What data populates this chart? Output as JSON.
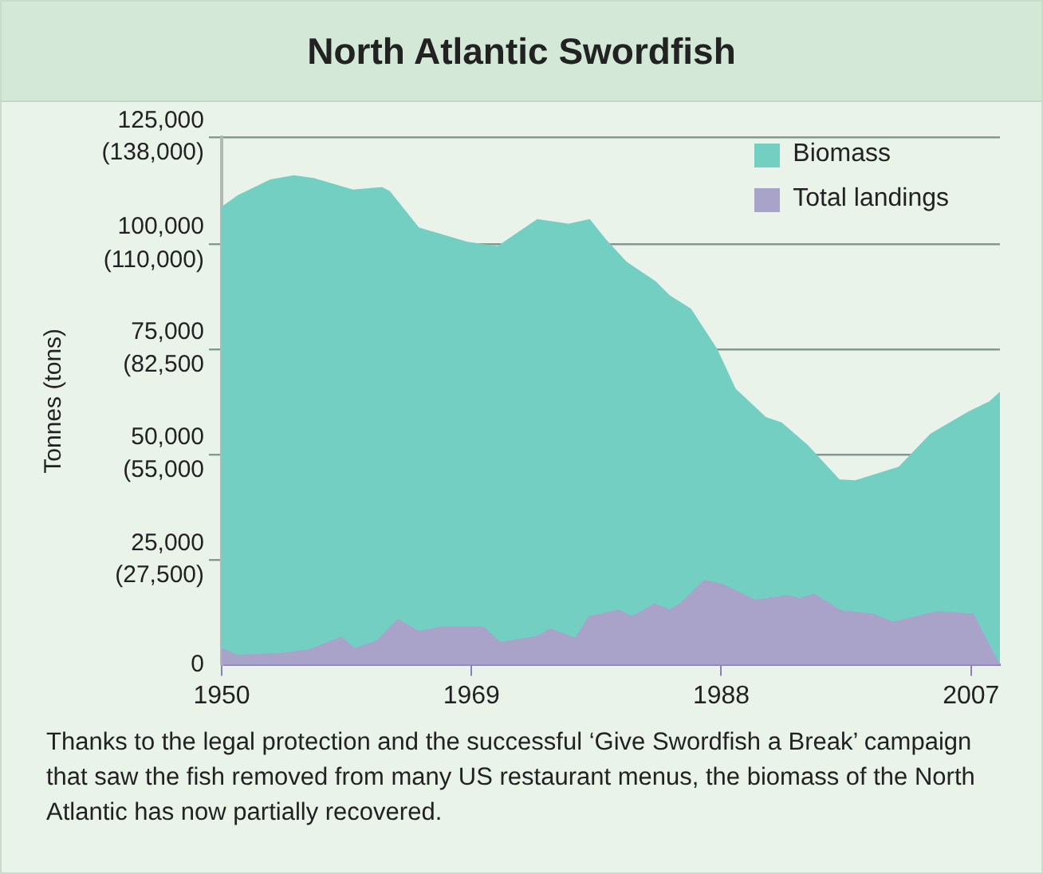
{
  "chart_data": {
    "type": "area",
    "title": "North Atlantic Swordfish",
    "ylabel": "Tonnes (tons)",
    "xlim": [
      1950,
      2009.2
    ],
    "xticks": [
      1950,
      1969,
      1988,
      2007
    ],
    "y2lim": [
      0,
      125000
    ],
    "y2ticks": [
      0,
      {
        "value": 25000,
        "label": "25,000"
      },
      {
        "value": 50000,
        "label": "50,000"
      },
      {
        "value": 75000,
        "label": "75,000"
      },
      {
        "value": 100000,
        "label": "100,000"
      },
      {
        "value": 125000,
        "label": "125,000"
      }
    ],
    "ylim": [
      0,
      138000
    ],
    "yticks": [
      {
        "value": 27500,
        "label": "(27,500)"
      },
      {
        "value": 55000,
        "label": "(55,000"
      },
      {
        "value": 82500,
        "label": "(82,500"
      },
      {
        "value": 110000,
        "label": "(110,000)"
      },
      {
        "value": 138000,
        "label": "(138,000)"
      }
    ],
    "grid": "y",
    "legend": "top right",
    "series": [
      {
        "name": "Biomass",
        "color": "#74cfc3",
        "axis": "y2",
        "x": [
          1950,
          1951.2,
          1953.7,
          1955.5,
          1957,
          1960,
          1962.2,
          1962.8,
          1965,
          1968.7,
          1971,
          1974,
          1976.4,
          1978,
          1979.2,
          1980.8,
          1983,
          1984.1,
          1985.7,
          1987.7,
          1989.1,
          1991.4,
          1992.6,
          1994.6,
          1997,
          1998.2,
          2001.5,
          2003.9,
          2006.8,
          2008.4,
          2009.2
        ],
        "values": [
          108500,
          111200,
          115000,
          116000,
          115300,
          112600,
          113200,
          112200,
          103600,
          100200,
          99200,
          105600,
          104500,
          105600,
          100900,
          95500,
          90900,
          87500,
          84400,
          74800,
          65400,
          58700,
          57400,
          52000,
          43900,
          43700,
          46900,
          54700,
          60000,
          62400,
          64700
        ]
      },
      {
        "name": "Total landings",
        "color": "#a9a3c9",
        "axis": "y2",
        "x": [
          1950,
          1951.2,
          1954.5,
          1956.7,
          1959.1,
          1960.1,
          1961.8,
          1963.4,
          1965,
          1966.7,
          1969.9,
          1971.2,
          1974,
          1975,
          1976.9,
          1977.9,
          1980.2,
          1981.2,
          1982.9,
          1984.1,
          1984.9,
          1986.7,
          1988.1,
          1990.6,
          1993,
          1994,
          1995.1,
          1997.1,
          1999.5,
          2001.1,
          2004.4,
          2007.2,
          2007.6,
          2009.2
        ],
        "values": [
          4000,
          2400,
          2800,
          3700,
          6700,
          4000,
          5800,
          10900,
          8000,
          9100,
          9100,
          5400,
          6800,
          8600,
          6400,
          11500,
          13100,
          11500,
          14500,
          13100,
          14700,
          20100,
          19200,
          15400,
          16500,
          15800,
          16900,
          12900,
          12100,
          10200,
          12700,
          12100,
          9600,
          0
        ]
      }
    ],
    "annotations": [
      "Thanks to the legal protection and the successful ‘Give Swordfish a Break’ campaign that saw the fish removed from many US restaurant menus, the biomass of the North Atlantic has now partially recovered."
    ]
  }
}
